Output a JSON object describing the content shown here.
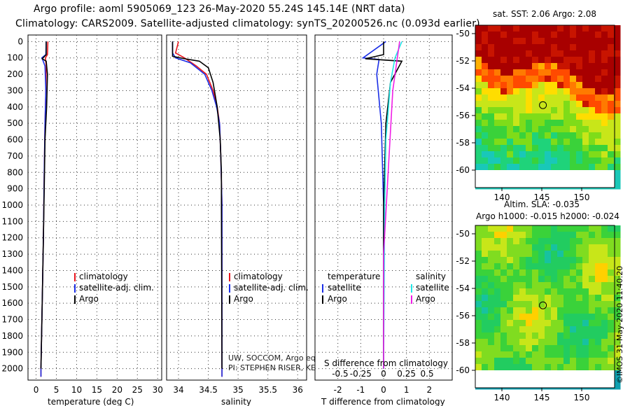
{
  "header": {
    "title_line1": "Argo profile: aoml 5905069_123 26-May-2020 55.24S 145.14E (NRT data)",
    "title_line2": "Climatology: CARS2009. Satellite-adjusted climatology: synTS_20200526.nc (0.093d earlier)"
  },
  "colors": {
    "climatology": "#e8141c",
    "satellite_adj": "#1a2ee6",
    "argo": "#000000",
    "sat_cyan": "#22e6e6",
    "argo_magenta": "#f01ee6"
  },
  "chart_data": [
    {
      "type": "line",
      "xlabel": "temperature (deg C)",
      "xlim": [
        -2,
        31
      ],
      "xticks": [
        0,
        5,
        10,
        15,
        20,
        25,
        30
      ],
      "ylim": [
        2070,
        -40
      ],
      "yticks": [
        0,
        100,
        200,
        300,
        400,
        500,
        600,
        700,
        800,
        900,
        1000,
        1100,
        1200,
        1300,
        1400,
        1500,
        1600,
        1700,
        1800,
        1900,
        2000
      ],
      "legend": [
        "climatology",
        "satellite-adj. clim.",
        "Argo"
      ],
      "series": [
        {
          "name": "climatology",
          "points": [
            [
              2.9,
              0
            ],
            [
              2.8,
              80
            ],
            [
              2.3,
              100
            ],
            [
              2.5,
              150
            ],
            [
              2.4,
              300
            ],
            [
              2.2,
              500
            ],
            [
              2.0,
              800
            ],
            [
              1.8,
              1200
            ],
            [
              1.5,
              1600
            ],
            [
              1.2,
              2000
            ],
            [
              1.2,
              2050
            ]
          ]
        },
        {
          "name": "satellite-adj. clim.",
          "points": [
            [
              2.5,
              0
            ],
            [
              2.4,
              80
            ],
            [
              1.4,
              100
            ],
            [
              1.6,
              110
            ],
            [
              2.2,
              150
            ],
            [
              2.4,
              300
            ],
            [
              2.2,
              500
            ],
            [
              2.0,
              800
            ],
            [
              1.8,
              1200
            ],
            [
              1.5,
              1600
            ],
            [
              1.2,
              2000
            ],
            [
              1.2,
              2050
            ]
          ]
        },
        {
          "name": "Argo",
          "points": [
            [
              2.5,
              0
            ],
            [
              2.5,
              80
            ],
            [
              1.5,
              105
            ],
            [
              2.5,
              120
            ],
            [
              2.8,
              200
            ],
            [
              2.6,
              400
            ],
            [
              2.2,
              600
            ],
            [
              2.0,
              900
            ],
            [
              1.8,
              1200
            ],
            [
              1.5,
              1600
            ],
            [
              1.2,
              2000
            ]
          ]
        }
      ]
    },
    {
      "type": "line",
      "xlabel": "salinity",
      "xlim": [
        33.8,
        36.15
      ],
      "xticks": [
        34,
        34.5,
        35,
        35.5,
        36
      ],
      "ylim": [
        2070,
        -40
      ],
      "legend": [
        "climatology",
        "satellite-adj. clim.",
        "Argo"
      ],
      "footnote1": "UW, SOCCOM, Argo equivalent",
      "footnote2": "PI: STEPHEN RISER, KENNETH JOHNSON",
      "series": [
        {
          "name": "climatology",
          "points": [
            [
              34.0,
              0
            ],
            [
              33.95,
              70
            ],
            [
              34.1,
              100
            ],
            [
              34.3,
              150
            ],
            [
              34.47,
              200
            ],
            [
              34.58,
              300
            ],
            [
              34.65,
              400
            ],
            [
              34.69,
              500
            ],
            [
              34.71,
              700
            ],
            [
              34.73,
              1000
            ],
            [
              34.73,
              2050
            ]
          ]
        },
        {
          "name": "satellite-adj. clim.",
          "points": [
            [
              33.9,
              0
            ],
            [
              33.9,
              70
            ],
            [
              33.95,
              100
            ],
            [
              34.2,
              130
            ],
            [
              34.44,
              200
            ],
            [
              34.56,
              300
            ],
            [
              34.64,
              400
            ],
            [
              34.69,
              500
            ],
            [
              34.71,
              700
            ],
            [
              34.73,
              1000
            ],
            [
              34.73,
              2050
            ]
          ]
        },
        {
          "name": "Argo",
          "points": [
            [
              33.9,
              0
            ],
            [
              33.9,
              90
            ],
            [
              34.1,
              105
            ],
            [
              34.35,
              120
            ],
            [
              34.5,
              160
            ],
            [
              34.58,
              250
            ],
            [
              34.65,
              400
            ],
            [
              34.7,
              600
            ],
            [
              34.72,
              800
            ],
            [
              34.72,
              1000
            ],
            [
              34.73,
              2000
            ]
          ]
        }
      ]
    },
    {
      "type": "line",
      "xlabel": "T difference from climatology",
      "xlabel2": "S difference from climatology",
      "xlim": [
        -3,
        3
      ],
      "xticks": [
        -2,
        -1,
        0,
        1,
        2
      ],
      "xticks2": [
        "-0.5",
        "-0.25",
        "0",
        "0.25",
        "0.5"
      ],
      "ylim": [
        2070,
        -40
      ],
      "legend_left_title": "temperature",
      "legend_right_title": "salinity",
      "legend_left": [
        "satellite",
        "Argo"
      ],
      "legend_right": [
        "satellite",
        "Argo"
      ],
      "series": [
        {
          "name": "T satellite",
          "points": [
            [
              0.1,
              0
            ],
            [
              -0.9,
              100
            ],
            [
              -0.2,
              110
            ],
            [
              -0.3,
              200
            ],
            [
              -0.1,
              500
            ],
            [
              0,
              1000
            ],
            [
              0,
              2000
            ]
          ]
        },
        {
          "name": "T Argo",
          "points": [
            [
              0,
              0
            ],
            [
              0,
              80
            ],
            [
              -0.8,
              105
            ],
            [
              0.8,
              120
            ],
            [
              0.3,
              250
            ],
            [
              0.1,
              500
            ],
            [
              0,
              1000
            ],
            [
              0,
              2000
            ]
          ]
        },
        {
          "name": "S satellite",
          "points": [
            [
              0.8,
              0
            ],
            [
              0.5,
              100
            ],
            [
              0.3,
              250
            ],
            [
              0.1,
              600
            ],
            [
              0.05,
              1000
            ],
            [
              0,
              2000
            ]
          ]
        },
        {
          "name": "S Argo",
          "points": [
            [
              0.7,
              0
            ],
            [
              0.6,
              100
            ],
            [
              0.4,
              300
            ],
            [
              0.2,
              800
            ],
            [
              0,
              1300
            ],
            [
              0,
              2000
            ]
          ]
        }
      ]
    }
  ],
  "map_sst": {
    "title": "sat. SST: 2.06 Argo: 2.08",
    "ylabels": [
      "-50",
      "-52",
      "-54",
      "-56",
      "-58",
      "-60"
    ],
    "xlabels": [
      "140",
      "145",
      "150"
    ],
    "float_lon": 145.14,
    "float_lat": -55.24
  },
  "map_sla": {
    "title1": "Altim. SLA: -0.035",
    "title2": "Argo h1000: -0.015 h2000: -0.024",
    "ylabels": [
      "-50",
      "-52",
      "-54",
      "-56",
      "-58",
      "-60"
    ],
    "xlabels": [
      "140",
      "145",
      "150"
    ],
    "float_lon": 145.14,
    "float_lat": -55.24
  },
  "credit": "©IMOS 31-May-2020 11:40:20"
}
